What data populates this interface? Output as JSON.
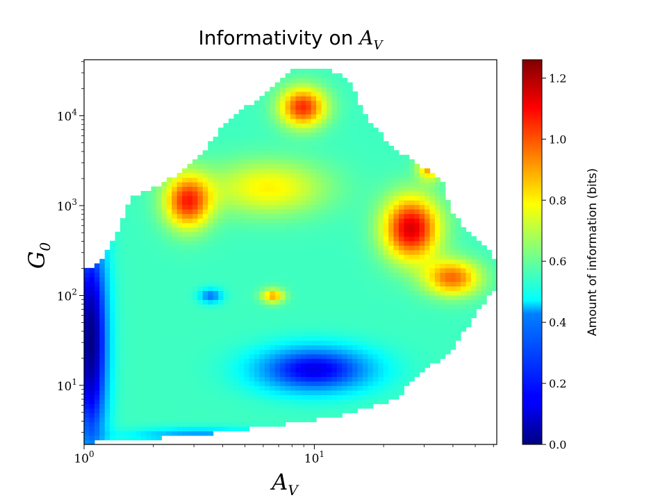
{
  "chart_data": {
    "type": "heatmap",
    "title_prefix": "Informativity on ",
    "title_math_main": "A",
    "title_math_sub": "V",
    "x": {
      "label_main": "A",
      "label_sub": "V",
      "scale": "log",
      "range": [
        1.0,
        62.0
      ],
      "major_ticks": [
        {
          "value": 1,
          "base": "10",
          "exp": "0"
        },
        {
          "value": 10,
          "base": "10",
          "exp": "1"
        }
      ]
    },
    "y": {
      "label_main": "G",
      "label_sub": "0",
      "scale": "log",
      "range": [
        2.2,
        42000
      ],
      "major_ticks": [
        {
          "value": 10,
          "base": "10",
          "exp": "1"
        },
        {
          "value": 100,
          "base": "10",
          "exp": "2"
        },
        {
          "value": 1000,
          "base": "10",
          "exp": "3"
        },
        {
          "value": 10000,
          "base": "10",
          "exp": "4"
        }
      ]
    },
    "colorbar": {
      "label": "Amount of information (bits)",
      "range": [
        0.0,
        1.26
      ],
      "ticks": [
        {
          "value": 0.0,
          "label": "0.0"
        },
        {
          "value": 0.2,
          "label": "0.2"
        },
        {
          "value": 0.4,
          "label": "0.4"
        },
        {
          "value": 0.6,
          "label": "0.6"
        },
        {
          "value": 0.8,
          "label": "0.8"
        },
        {
          "value": 1.0,
          "label": "1.0"
        },
        {
          "value": 1.2,
          "label": "1.2"
        }
      ],
      "colormap": "jet"
    },
    "boundary_polygon_log10": [
      [
        0.0,
        2.28
      ],
      [
        0.08,
        2.4
      ],
      [
        0.15,
        2.75
      ],
      [
        0.2,
        3.08
      ],
      [
        0.25,
        3.15
      ],
      [
        0.35,
        3.25
      ],
      [
        0.5,
        3.55
      ],
      [
        0.62,
        3.95
      ],
      [
        0.75,
        4.18
      ],
      [
        0.9,
        4.5
      ],
      [
        1.05,
        4.55
      ],
      [
        1.15,
        4.4
      ],
      [
        1.22,
        4.0
      ],
      [
        1.32,
        3.7
      ],
      [
        1.45,
        3.45
      ],
      [
        1.55,
        3.3
      ],
      [
        1.6,
        2.9
      ],
      [
        1.7,
        2.65
      ],
      [
        1.78,
        2.45
      ],
      [
        1.79,
        2.1
      ],
      [
        1.7,
        1.8
      ],
      [
        1.6,
        1.4
      ],
      [
        1.45,
        1.1
      ],
      [
        1.35,
        0.85
      ],
      [
        1.15,
        0.68
      ],
      [
        0.9,
        0.58
      ],
      [
        0.6,
        0.48
      ],
      [
        0.35,
        0.42
      ],
      [
        0.0,
        0.36
      ]
    ],
    "field_model": {
      "base": 0.55,
      "clamp": [
        0.0,
        1.26
      ],
      "bumps": [
        {
          "ax": 0.45,
          "ay": 3.05,
          "sx": 0.1,
          "sy": 0.3,
          "amp": 0.5
        },
        {
          "ax": 0.95,
          "ay": 4.1,
          "sx": 0.1,
          "sy": 0.22,
          "amp": 0.5
        },
        {
          "ax": 1.42,
          "ay": 2.75,
          "sx": 0.12,
          "sy": 0.35,
          "amp": 0.6
        },
        {
          "ax": 1.5,
          "ay": 3.45,
          "sx": 0.05,
          "sy": 0.15,
          "amp": 0.4
        },
        {
          "ax": 1.6,
          "ay": 2.2,
          "sx": 0.12,
          "sy": 0.2,
          "amp": 0.42
        },
        {
          "ax": 0.8,
          "ay": 3.2,
          "sx": 0.25,
          "sy": 0.3,
          "amp": 0.25
        },
        {
          "ax": 0.82,
          "ay": 2.0,
          "sx": 0.05,
          "sy": 0.08,
          "amp": 0.35
        },
        {
          "ax": 1.0,
          "ay": 1.18,
          "sx": 0.25,
          "sy": 0.25,
          "amp": -0.42
        },
        {
          "ax": 0.55,
          "ay": 2.0,
          "sx": 0.05,
          "sy": 0.08,
          "amp": -0.25
        },
        {
          "ax": 0.03,
          "ay": 1.5,
          "sx": 0.07,
          "sy": 1.2,
          "amp": -0.55
        },
        {
          "ax": 0.5,
          "ay": 0.45,
          "sx": 0.3,
          "sy": 0.08,
          "amp": -0.2
        }
      ]
    }
  }
}
